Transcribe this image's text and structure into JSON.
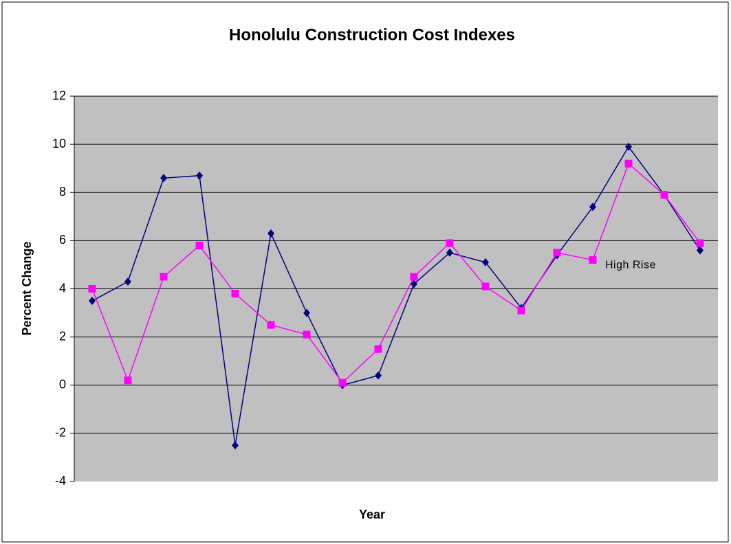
{
  "chart_data": {
    "type": "line",
    "title": "Honolulu Construction Cost Indexes",
    "xlabel": "Year",
    "ylabel": "Percent Change",
    "annotation": "High Rise",
    "categories": [
      null,
      null,
      null,
      null,
      null,
      null,
      null,
      null,
      null,
      null,
      null,
      null,
      null,
      null,
      null,
      null,
      null,
      null
    ],
    "series": [
      {
        "color": "#000080",
        "marker": "diamond",
        "values": [
          3.5,
          4.3,
          8.6,
          8.7,
          -2.5,
          6.3,
          3.0,
          0.0,
          0.4,
          4.2,
          5.5,
          5.1,
          3.2,
          5.4,
          7.4,
          9.9,
          7.9,
          5.6
        ]
      },
      {
        "color": "#ff00ff",
        "marker": "square",
        "values": [
          4.0,
          0.2,
          4.5,
          5.8,
          3.8,
          2.5,
          2.1,
          0.1,
          1.5,
          4.5,
          5.9,
          4.1,
          3.1,
          5.5,
          5.2,
          9.2,
          7.9,
          5.9
        ]
      }
    ],
    "ylim": [
      -4,
      12
    ],
    "yticks": [
      -4,
      -2,
      0,
      2,
      4,
      6,
      8,
      10,
      12
    ],
    "grid": true
  }
}
